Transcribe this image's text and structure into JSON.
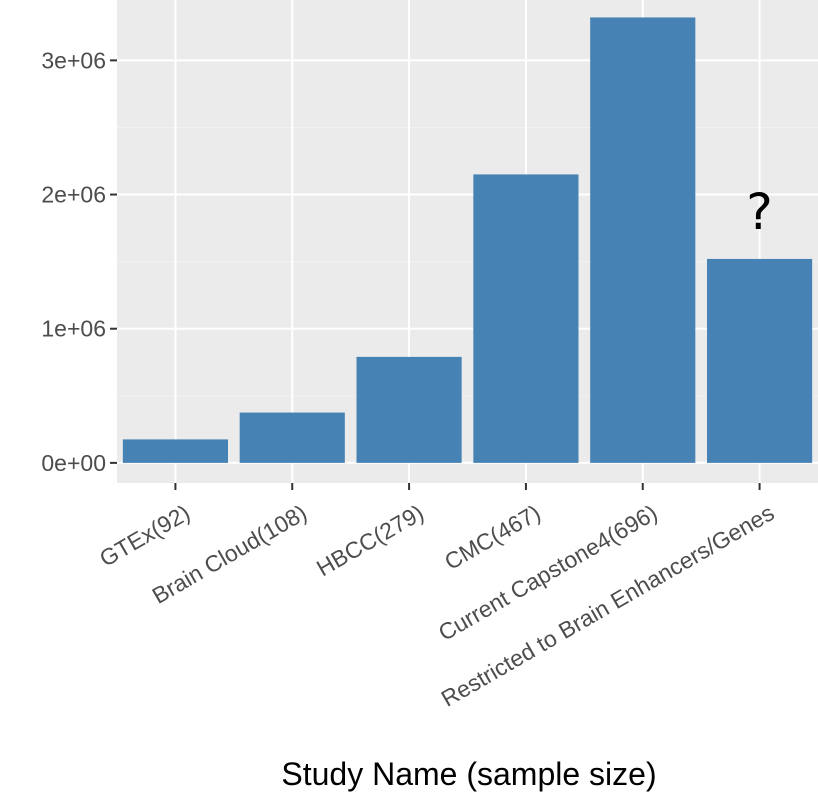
{
  "chart_data": {
    "type": "bar",
    "categories": [
      "GTEx(92)",
      "Brain Cloud(108)",
      "HBCC(279)",
      "CMC(467)",
      "Current Capstone4(696)",
      "Restricted to Brain Enhancers/Genes"
    ],
    "values": [
      175000,
      375000,
      790000,
      2150000,
      3320000,
      1520000
    ],
    "title": "",
    "xlabel": "Study Name (sample size)",
    "ylabel": "",
    "ylim": [
      -150000,
      3450000
    ],
    "yticks": [
      0,
      1000000,
      2000000,
      3000000
    ],
    "ytick_labels": [
      "0e+00",
      "1e+06",
      "2e+06",
      "3e+06"
    ],
    "grid": true,
    "annotations": [
      {
        "text": "?",
        "category": "Restricted to Brain Enhancers/Genes"
      }
    ],
    "colors": {
      "bar": "#4682b4",
      "panel": "#ebebeb",
      "grid_major": "#ffffff",
      "grid_minor": "#f2f2f2"
    }
  }
}
